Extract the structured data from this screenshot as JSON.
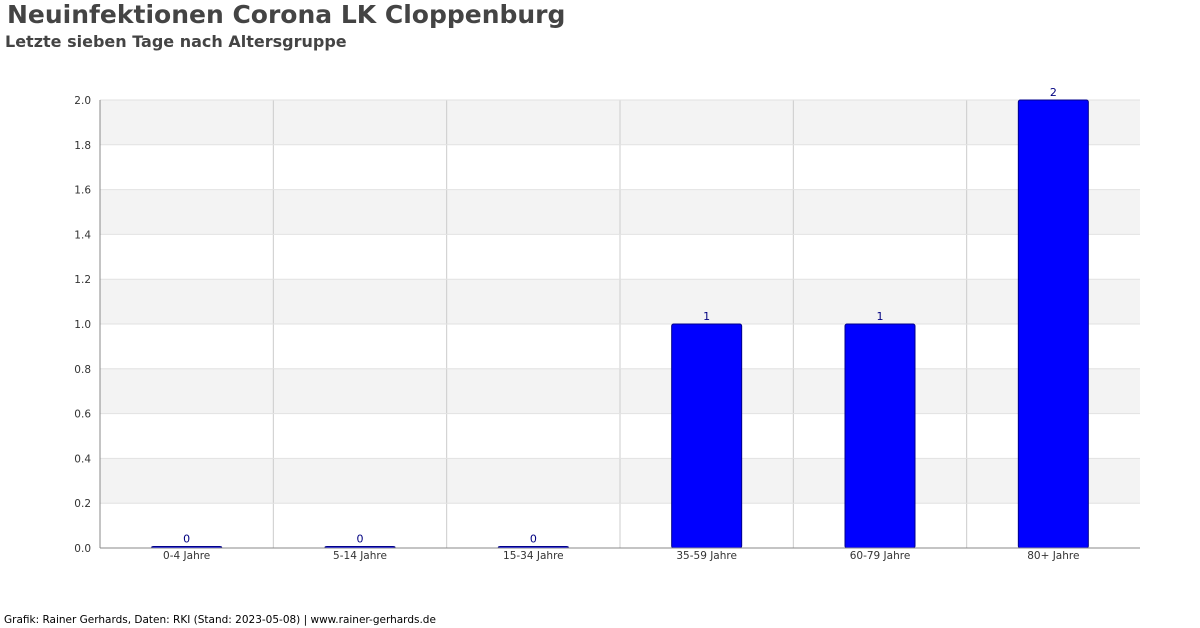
{
  "chart_data": {
    "type": "bar",
    "title": "Neuinfektionen Corona LK Cloppenburg",
    "subtitle": "Letzte sieben Tage nach Altersgruppe",
    "categories": [
      "0-4 Jahre",
      "5-14 Jahre",
      "15-34 Jahre",
      "35-59 Jahre",
      "60-79 Jahre",
      "80+ Jahre"
    ],
    "values": [
      0,
      0,
      0,
      1,
      1,
      2
    ],
    "data_labels": [
      "0",
      "0",
      "0",
      "1",
      "1",
      "2"
    ],
    "ylim": [
      0,
      2
    ],
    "yticks": [
      "0.0",
      "0.2",
      "0.4",
      "0.6",
      "0.8",
      "1.0",
      "1.2",
      "1.4",
      "1.6",
      "1.8",
      "2.0"
    ],
    "xlabel": "",
    "ylabel": "",
    "grid": true,
    "colors": {
      "bar": "#0000ff",
      "bar_edge": "#00008b",
      "band": "#f3f3f3",
      "grid": "#cccccc",
      "axis": "#888888",
      "tick_text": "#333333",
      "label_text": "#000080"
    }
  },
  "footer": {
    "credit": "Grafik: Rainer Gerhards, Daten: RKI (Stand: 2023-05-08) | www.rainer-gerhards.de"
  }
}
